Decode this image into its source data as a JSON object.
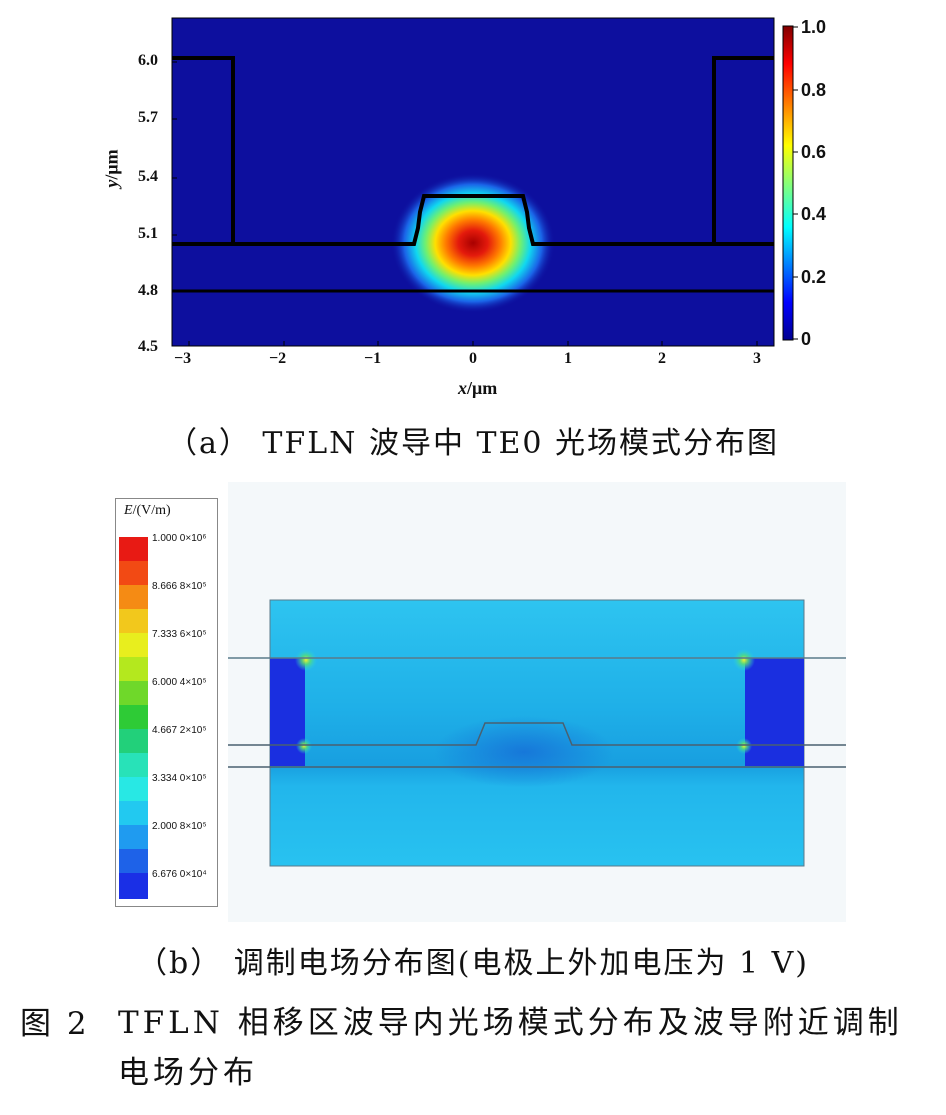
{
  "figure": {
    "number_label": "图 2",
    "title": "TFLN 相移区波导内光场模式分布及波导附近调制电场分布"
  },
  "panel_a": {
    "caption": "（a）  TFLN 波导中 TE0 光场模式分布图",
    "x_label_var": "x",
    "x_label_unit": "/μm",
    "y_label_var": "y",
    "y_label_unit": "/μm",
    "x_ticks": [
      "−3",
      "−2",
      "−1",
      "0",
      "1",
      "2",
      "3"
    ],
    "y_ticks": [
      "6.0",
      "5.7",
      "5.4",
      "5.1",
      "4.8",
      "4.5"
    ],
    "colorbar_ticks": [
      "1.0",
      "0.8",
      "0.6",
      "0.4",
      "0.2",
      "0"
    ],
    "colors": {
      "background": "#0d0f9e",
      "peak": "#b00000",
      "outline": "#000000"
    }
  },
  "panel_b": {
    "caption": "（b）  调制电场分布图(电极上外加电压为 1 V)",
    "legend_title_var": "E",
    "legend_title_unit": "/(V/m)",
    "legend_labels": [
      "1.000 0×10⁶",
      "8.666 8×10⁵",
      "7.333 6×10⁵",
      "6.000 4×10⁵",
      "4.667 2×10⁵",
      "3.334 0×10⁵",
      "2.000 8×10⁵",
      "6.676 0×10⁴"
    ],
    "legend_colors": [
      "#e81a14",
      "#f24a14",
      "#f58b14",
      "#f2c81c",
      "#e8ee1e",
      "#b4e81e",
      "#6fd82a",
      "#2ecb36",
      "#22d07a",
      "#28e2b8",
      "#28e8e4",
      "#22c9f0",
      "#1f9bf0",
      "#1e62e8",
      "#1a2fe6"
    ],
    "colors": {
      "field": "#22b4ea",
      "electrode": "#1a2fe0"
    }
  }
}
